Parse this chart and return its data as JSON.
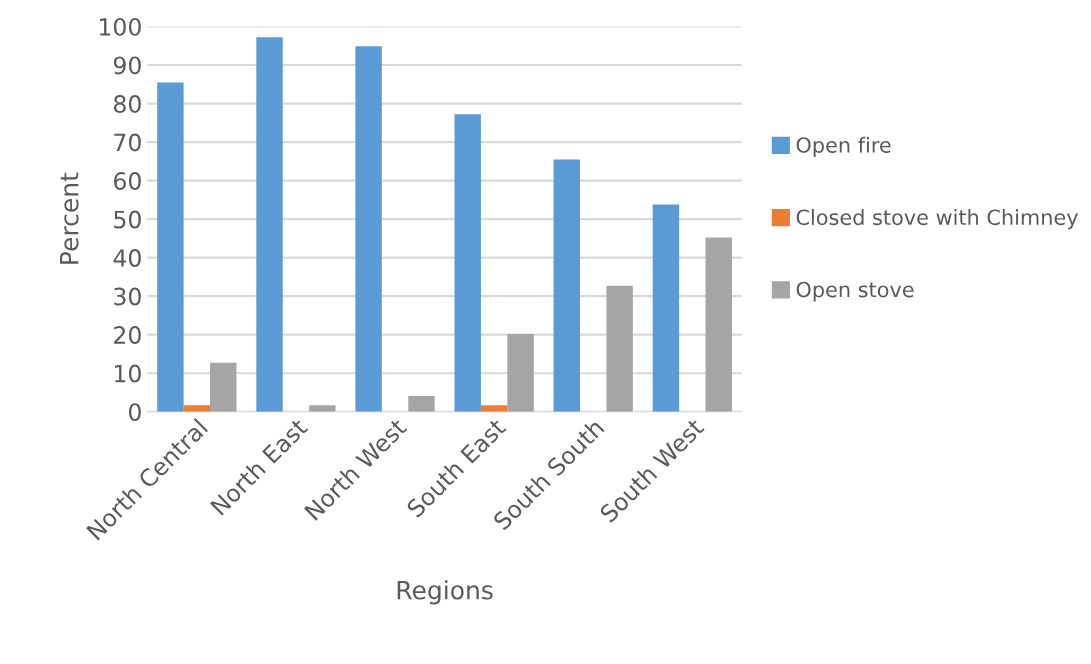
{
  "chart_data": {
    "type": "bar",
    "xlabel": "Regions",
    "ylabel": "Percent",
    "categories": [
      "North Central",
      "North East",
      "North West",
      "South East",
      "South South",
      "South West"
    ],
    "series": [
      {
        "name": "Open fire",
        "color": "#5b9bd5",
        "values": [
          85.5,
          97.2,
          94.9,
          77.2,
          65.5,
          53.8
        ]
      },
      {
        "name": "Closed stove with Chimney",
        "color": "#ed7d31",
        "values": [
          1.7,
          0,
          0,
          1.7,
          0,
          0
        ]
      },
      {
        "name": "Open stove",
        "color": "#a5a5a5",
        "values": [
          12.7,
          1.7,
          4.1,
          20.2,
          32.7,
          45.2
        ]
      }
    ],
    "ylim": [
      0,
      100
    ],
    "yticks": [
      0,
      10,
      20,
      30,
      40,
      50,
      60,
      70,
      80,
      90,
      100
    ],
    "grid": "y",
    "legend": "right"
  }
}
